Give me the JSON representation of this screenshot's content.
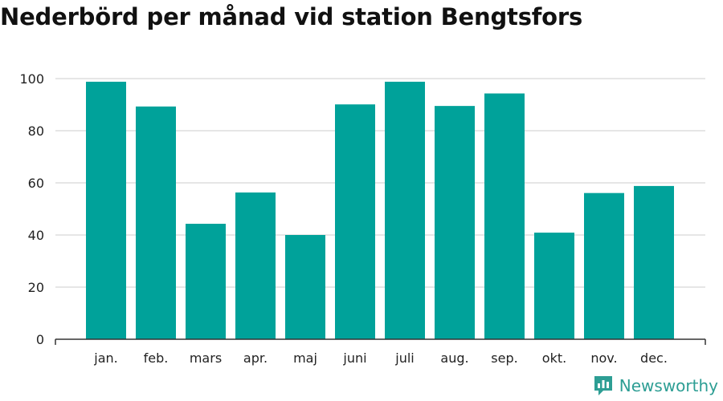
{
  "title": "Nederbörd per månad vid station Bengtsfors",
  "brand": {
    "name": "Newsworthy",
    "icon": "bar-chart-logo-icon"
  },
  "colors": {
    "bar": "#00a29a",
    "brand": "#2d9e94",
    "grid": "#dddddd",
    "axis": "#333333"
  },
  "chart_data": {
    "type": "bar",
    "title": "Nederbörd per månad vid station Bengtsfors",
    "categories": [
      "jan.",
      "feb.",
      "mars",
      "apr.",
      "maj",
      "juni",
      "juli",
      "aug.",
      "sep.",
      "okt.",
      "nov.",
      "dec."
    ],
    "values": [
      98.8,
      89.3,
      44.3,
      56.3,
      40.0,
      90.1,
      98.8,
      89.5,
      94.3,
      40.9,
      56.1,
      58.8
    ],
    "ylim": [
      0,
      100
    ],
    "yticks": [
      0,
      20,
      40,
      60,
      80,
      100
    ],
    "grid": true,
    "legend": "none"
  }
}
